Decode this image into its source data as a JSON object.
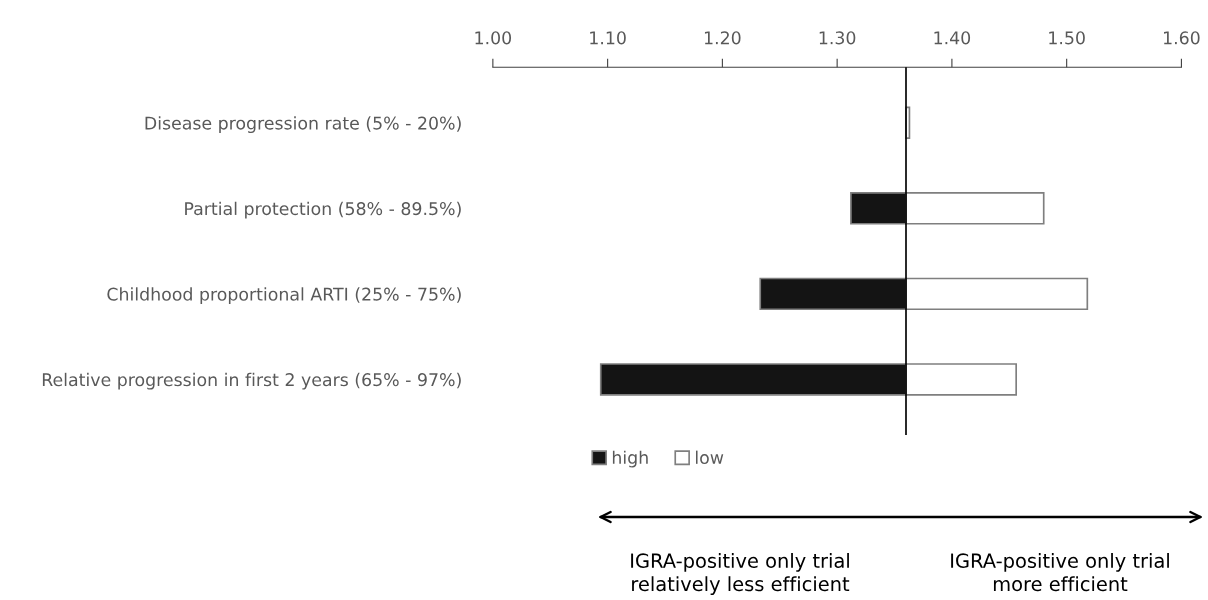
{
  "chart_data": {
    "type": "bar",
    "orientation": "horizontal",
    "categories": [
      "Disease progression rate (5% - 20%)",
      "Partial protection (58% - 89.5%)",
      "Childhood proportional ARTI (25% - 75%)",
      "Relative progression in first 2 years (65% - 97%)"
    ],
    "series": [
      {
        "name": "high",
        "color": "#141414",
        "base": [
          null,
          1.36,
          1.36,
          1.36
        ],
        "values": [
          null,
          -0.048,
          -0.127,
          -0.266
        ]
      },
      {
        "name": "low",
        "color": "#ffffff",
        "base": [
          1.36,
          1.36,
          1.36,
          1.36
        ],
        "values": [
          0.003,
          0.12,
          0.158,
          0.096
        ]
      }
    ],
    "xlim": [
      1.0,
      1.6
    ],
    "xticks": [
      {
        "value": 1.0,
        "label": "1.00"
      },
      {
        "value": 1.1,
        "label": "1.10"
      },
      {
        "value": 1.2,
        "label": "1.20"
      },
      {
        "value": 1.3,
        "label": "1.30"
      },
      {
        "value": 1.4,
        "label": "1.40"
      },
      {
        "value": 1.5,
        "label": "1.50"
      },
      {
        "value": 1.6,
        "label": "1.60"
      }
    ],
    "ref_lines": [
      {
        "axis": "x",
        "value": 1.36,
        "label": null,
        "color": "#000000"
      }
    ],
    "grid": false,
    "legend": "bottom",
    "annotations": [
      "IGRA-positive only trial\nrelatively less efficient",
      "IGRA-positive only trial\nmore efficient"
    ]
  }
}
